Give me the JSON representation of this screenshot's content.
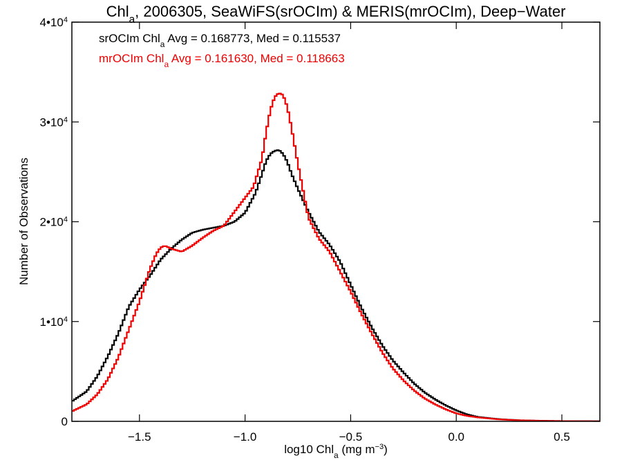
{
  "chart_data": {
    "type": "line",
    "step": true,
    "title": {
      "parts": [
        {
          "text": "Chl",
          "sub": false
        },
        {
          "text": "a",
          "sub": true
        },
        {
          "text": ", 2006305, SeaWiFS(srOCIm) & MERIS(mrOCIm), Deep−Water",
          "sub": false
        }
      ]
    },
    "xlabel": {
      "parts": [
        {
          "text": "log10 Chl",
          "sub": false
        },
        {
          "text": "a",
          "sub": true
        },
        {
          "text": " (mg m",
          "sub": false
        },
        {
          "text": "−3",
          "sup": true
        },
        {
          "text": ")",
          "sub": false
        }
      ]
    },
    "ylabel": "Number of Observations",
    "xlim": [
      -1.82,
      0.68
    ],
    "ylim": [
      0,
      40000
    ],
    "x_ticks": [
      {
        "value": -1.5,
        "label": "−1.5"
      },
      {
        "value": -1.0,
        "label": "−1.0"
      },
      {
        "value": -0.5,
        "label": "−0.5"
      },
      {
        "value": 0.0,
        "label": "0.0"
      },
      {
        "value": 0.5,
        "label": "0.5"
      }
    ],
    "y_ticks": [
      {
        "value": 0,
        "base": "0",
        "exp": ""
      },
      {
        "value": 10000,
        "base": "1•10",
        "exp": "4"
      },
      {
        "value": 20000,
        "base": "2•10",
        "exp": "4"
      },
      {
        "value": 30000,
        "base": "3•10",
        "exp": "4"
      },
      {
        "value": 40000,
        "base": "4•10",
        "exp": "4"
      }
    ],
    "annotations": [
      {
        "color": "#000000",
        "parts": [
          {
            "text": "srOCIm Chl",
            "sub": false
          },
          {
            "text": "a",
            "sub": true
          },
          {
            "text": " Avg = 0.168773, Med = 0.115537",
            "sub": false
          }
        ]
      },
      {
        "color": "#ee0000",
        "parts": [
          {
            "text": "mrOCIm Chl",
            "sub": false
          },
          {
            "text": "a",
            "sub": true
          },
          {
            "text": " Avg = 0.161630, Med = 0.118663",
            "sub": false
          }
        ]
      }
    ],
    "grid": false,
    "series": [
      {
        "color": "#000000",
        "points": [
          [
            -1.82,
            2000
          ],
          [
            -1.75,
            3000
          ],
          [
            -1.7,
            4500
          ],
          [
            -1.65,
            6500
          ],
          [
            -1.6,
            8800
          ],
          [
            -1.55,
            11500
          ],
          [
            -1.5,
            13200
          ],
          [
            -1.45,
            14600
          ],
          [
            -1.4,
            16200
          ],
          [
            -1.35,
            17300
          ],
          [
            -1.3,
            18200
          ],
          [
            -1.25,
            18900
          ],
          [
            -1.2,
            19200
          ],
          [
            -1.15,
            19400
          ],
          [
            -1.1,
            19600
          ],
          [
            -1.05,
            20000
          ],
          [
            -1.0,
            20900
          ],
          [
            -0.95,
            22900
          ],
          [
            -0.92,
            24800
          ],
          [
            -0.9,
            26100
          ],
          [
            -0.88,
            26800
          ],
          [
            -0.86,
            27100
          ],
          [
            -0.84,
            27200
          ],
          [
            -0.82,
            26800
          ],
          [
            -0.8,
            26000
          ],
          [
            -0.78,
            24800
          ],
          [
            -0.75,
            23300
          ],
          [
            -0.7,
            21000
          ],
          [
            -0.65,
            19000
          ],
          [
            -0.6,
            17700
          ],
          [
            -0.55,
            16000
          ],
          [
            -0.5,
            13700
          ],
          [
            -0.45,
            11400
          ],
          [
            -0.4,
            9400
          ],
          [
            -0.35,
            7600
          ],
          [
            -0.3,
            6100
          ],
          [
            -0.25,
            4900
          ],
          [
            -0.2,
            3800
          ],
          [
            -0.15,
            2900
          ],
          [
            -0.1,
            2200
          ],
          [
            -0.05,
            1600
          ],
          [
            0.0,
            1100
          ],
          [
            0.05,
            700
          ],
          [
            0.1,
            450
          ],
          [
            0.2,
            220
          ],
          [
            0.3,
            110
          ],
          [
            0.4,
            60
          ],
          [
            0.5,
            30
          ],
          [
            0.68,
            10
          ]
        ]
      },
      {
        "color": "#ee0000",
        "points": [
          [
            -1.82,
            1000
          ],
          [
            -1.75,
            1700
          ],
          [
            -1.7,
            2700
          ],
          [
            -1.65,
            4200
          ],
          [
            -1.6,
            6400
          ],
          [
            -1.55,
            9200
          ],
          [
            -1.5,
            12000
          ],
          [
            -1.45,
            15300
          ],
          [
            -1.42,
            16800
          ],
          [
            -1.4,
            17400
          ],
          [
            -1.38,
            17600
          ],
          [
            -1.35,
            17300
          ],
          [
            -1.3,
            17000
          ],
          [
            -1.25,
            17600
          ],
          [
            -1.2,
            18400
          ],
          [
            -1.15,
            19100
          ],
          [
            -1.1,
            19600
          ],
          [
            -1.05,
            21000
          ],
          [
            -1.0,
            22400
          ],
          [
            -0.96,
            23500
          ],
          [
            -0.92,
            26300
          ],
          [
            -0.9,
            29000
          ],
          [
            -0.88,
            31200
          ],
          [
            -0.86,
            32500
          ],
          [
            -0.84,
            32900
          ],
          [
            -0.82,
            32700
          ],
          [
            -0.8,
            31500
          ],
          [
            -0.78,
            29400
          ],
          [
            -0.75,
            25800
          ],
          [
            -0.7,
            20400
          ],
          [
            -0.65,
            18300
          ],
          [
            -0.6,
            17000
          ],
          [
            -0.55,
            15000
          ],
          [
            -0.5,
            13000
          ],
          [
            -0.45,
            10800
          ],
          [
            -0.4,
            8800
          ],
          [
            -0.35,
            6900
          ],
          [
            -0.3,
            5300
          ],
          [
            -0.25,
            4100
          ],
          [
            -0.2,
            3100
          ],
          [
            -0.15,
            2300
          ],
          [
            -0.1,
            1700
          ],
          [
            -0.05,
            1200
          ],
          [
            0.0,
            800
          ],
          [
            0.05,
            550
          ],
          [
            0.1,
            400
          ],
          [
            0.2,
            200
          ],
          [
            0.3,
            100
          ],
          [
            0.4,
            55
          ],
          [
            0.5,
            30
          ],
          [
            0.68,
            10
          ]
        ]
      }
    ]
  }
}
